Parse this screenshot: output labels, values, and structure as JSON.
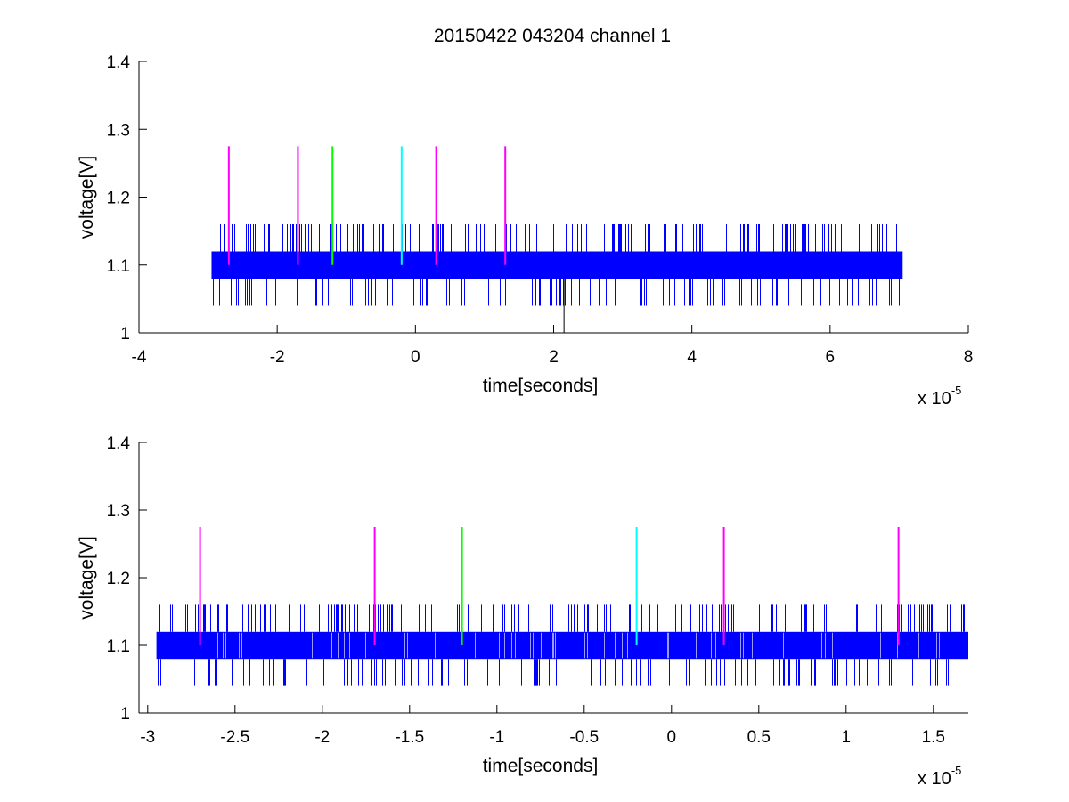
{
  "figure": {
    "title": "20150422 043204 channel 1"
  },
  "chart_data": [
    {
      "type": "line",
      "title": "20150422 043204 channel 1",
      "xlabel": "time[seconds]",
      "ylabel": "voltage[V]",
      "x_exponent_label": "x 10",
      "x_exponent_power": "-5",
      "xlim": [
        -4,
        8
      ],
      "ylim": [
        1,
        1.4
      ],
      "xticks": [
        -4,
        -2,
        0,
        2,
        4,
        6,
        8
      ],
      "xtick_labels": [
        "-4",
        "-2",
        "0",
        "2",
        "4",
        "6",
        "8"
      ],
      "yticks": [
        1,
        1.1,
        1.2,
        1.3,
        1.4
      ],
      "ytick_labels": [
        "1",
        "1.1",
        "1.2",
        "1.3",
        "1.4"
      ],
      "grid": false,
      "signal": {
        "color": "#0000ff",
        "x_start": -2.95,
        "x_end": 7.05,
        "band_low": 1.08,
        "band_high": 1.12,
        "spike_high": 1.16,
        "spike_low": 1.04,
        "extreme_low": {
          "x": 2.15,
          "y": 1.0
        }
      },
      "markers": [
        {
          "x": -2.7,
          "color": "#ff00ff",
          "y_low": 1.1,
          "y_high": 1.275
        },
        {
          "x": -1.7,
          "color": "#ff00ff",
          "y_low": 1.1,
          "y_high": 1.275
        },
        {
          "x": -1.2,
          "color": "#00ff00",
          "y_low": 1.1,
          "y_high": 1.275
        },
        {
          "x": -0.2,
          "color": "#00ffff",
          "y_low": 1.1,
          "y_high": 1.275
        },
        {
          "x": 0.3,
          "color": "#ff00ff",
          "y_low": 1.1,
          "y_high": 1.275
        },
        {
          "x": 1.3,
          "color": "#ff00ff",
          "y_low": 1.1,
          "y_high": 1.275
        }
      ]
    },
    {
      "type": "line",
      "title": "",
      "xlabel": "time[seconds]",
      "ylabel": "voltage[V]",
      "x_exponent_label": "x 10",
      "x_exponent_power": "-5",
      "xlim": [
        -3.05,
        1.7
      ],
      "ylim": [
        1,
        1.4
      ],
      "xticks": [
        -3,
        -2.5,
        -2,
        -1.5,
        -1,
        -0.5,
        0,
        0.5,
        1,
        1.5
      ],
      "xtick_labels": [
        "-3",
        "-2.5",
        "-2",
        "-1.5",
        "-1",
        "-0.5",
        "0",
        "0.5",
        "1",
        "1.5"
      ],
      "yticks": [
        1,
        1.1,
        1.2,
        1.3,
        1.4
      ],
      "ytick_labels": [
        "1",
        "1.1",
        "1.2",
        "1.3",
        "1.4"
      ],
      "grid": false,
      "signal": {
        "color": "#0000ff",
        "x_start": -2.95,
        "x_end": 1.7,
        "band_low": 1.08,
        "band_high": 1.12,
        "spike_high": 1.16,
        "spike_low": 1.04
      },
      "markers": [
        {
          "x": -2.7,
          "color": "#ff00ff",
          "y_low": 1.1,
          "y_high": 1.275
        },
        {
          "x": -1.7,
          "color": "#ff00ff",
          "y_low": 1.1,
          "y_high": 1.275
        },
        {
          "x": -1.2,
          "color": "#00ff00",
          "y_low": 1.1,
          "y_high": 1.275
        },
        {
          "x": -0.2,
          "color": "#00ffff",
          "y_low": 1.1,
          "y_high": 1.275
        },
        {
          "x": 0.3,
          "color": "#ff00ff",
          "y_low": 1.1,
          "y_high": 1.275
        },
        {
          "x": 1.3,
          "color": "#ff00ff",
          "y_low": 1.1,
          "y_high": 1.275
        }
      ]
    }
  ]
}
